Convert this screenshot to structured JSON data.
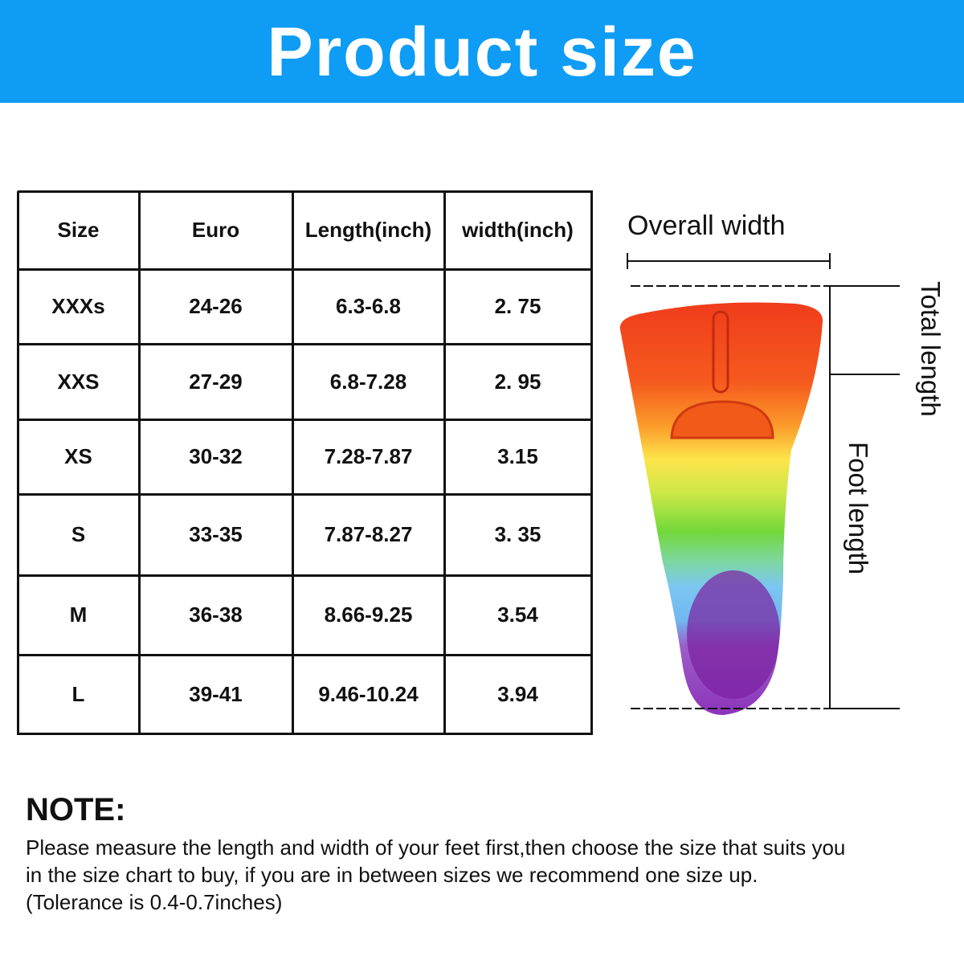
{
  "header": {
    "title": "Product size"
  },
  "table": {
    "headers": [
      "Size",
      "Euro",
      "Length(inch)",
      "width(inch)"
    ],
    "rows": [
      [
        "XXXs",
        "24-26",
        "6.3-6.8",
        "2. 75"
      ],
      [
        "XXS",
        "27-29",
        "6.8-7.28",
        "2. 95"
      ],
      [
        "XS",
        "30-32",
        "7.28-7.87",
        "3.15"
      ],
      [
        "S",
        "33-35",
        "7.87-8.27",
        "3. 35"
      ],
      [
        "M",
        "36-38",
        "8.66-9.25",
        "3.54"
      ],
      [
        "L",
        "39-41",
        "9.46-10.24",
        "3.94"
      ]
    ]
  },
  "diagram": {
    "width_label": "Overall width",
    "total_length_label": "Total length",
    "foot_length_label": "Foot length"
  },
  "note": {
    "title": "NOTE:",
    "lines": [
      "Please measure the length and width of your feet first,then choose the size that suits you",
      "in the size chart to buy, if you are in between sizes we recommend one size up.",
      "(Tolerance is 0.4-0.7inches)"
    ]
  }
}
